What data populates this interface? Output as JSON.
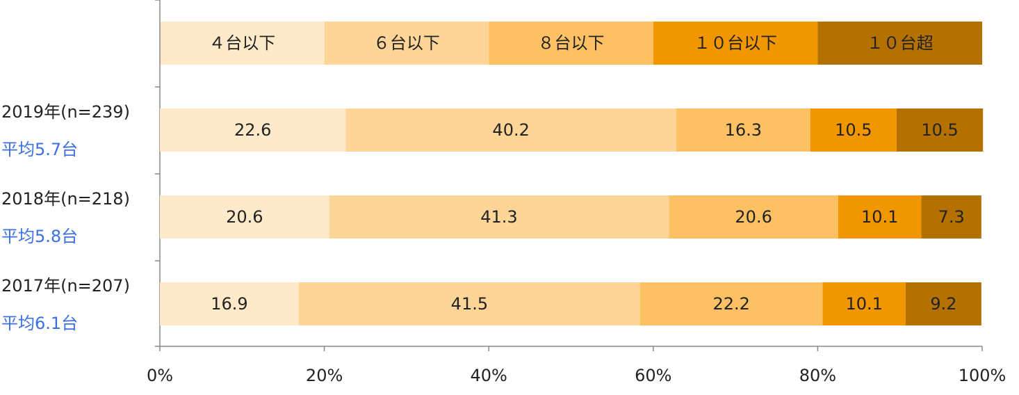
{
  "chart_data": {
    "type": "stacked_bar_horizontal",
    "categories": [
      "2019年(n=239)",
      "2018年(n=218)",
      "2017年(n=207)"
    ],
    "averages": [
      "平均5.7台",
      "平均5.8台",
      "平均6.1台"
    ],
    "series": [
      {
        "name": "４台以下",
        "color": "#FEE9C9",
        "values": [
          22.6,
          20.6,
          16.9
        ]
      },
      {
        "name": "６台以下",
        "color": "#FDD596",
        "values": [
          40.2,
          41.3,
          41.5
        ]
      },
      {
        "name": "８台以下",
        "color": "#FDC163",
        "values": [
          16.3,
          20.6,
          22.2
        ]
      },
      {
        "name": "１０台以下",
        "color": "#F29600",
        "values": [
          10.5,
          10.1,
          10.1
        ]
      },
      {
        "name": "１０台超",
        "color": "#B57100",
        "values": [
          10.5,
          7.3,
          9.2
        ]
      }
    ],
    "xlim": [
      0,
      100
    ],
    "xticks": [
      {
        "value": 0,
        "label": "0%"
      },
      {
        "value": 20,
        "label": "20%"
      },
      {
        "value": 40,
        "label": "40%"
      },
      {
        "value": 60,
        "label": "60%"
      },
      {
        "value": 80,
        "label": "80%"
      },
      {
        "value": 100,
        "label": "100%"
      }
    ]
  }
}
